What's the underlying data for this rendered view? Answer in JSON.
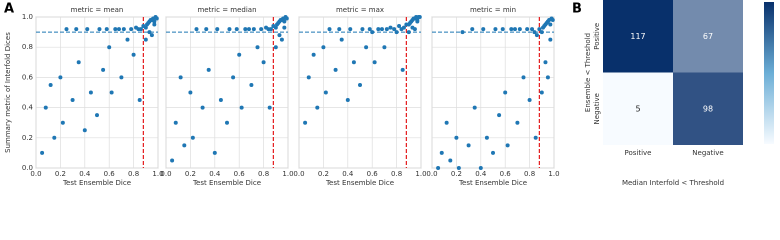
{
  "chart_data": [
    {
      "type": "scatter",
      "panel_label": "A",
      "title": "metric = mean",
      "xlabel": "Test Ensemble Dice",
      "ylabel": "Summary metric of Interfold Dices",
      "color": "#1f77b4",
      "x": [
        0.05,
        0.08,
        0.12,
        0.15,
        0.2,
        0.22,
        0.25,
        0.3,
        0.33,
        0.35,
        0.4,
        0.42,
        0.45,
        0.5,
        0.52,
        0.55,
        0.58,
        0.6,
        0.62,
        0.65,
        0.68,
        0.7,
        0.72,
        0.75,
        0.78,
        0.8,
        0.82,
        0.84,
        0.86,
        0.88,
        0.9,
        0.91,
        0.92,
        0.93,
        0.94,
        0.95,
        0.96,
        0.97,
        0.98,
        0.99,
        0.93,
        0.95,
        0.97,
        0.9,
        0.85
      ],
      "values": [
        0.1,
        0.4,
        0.55,
        0.2,
        0.6,
        0.3,
        0.92,
        0.45,
        0.92,
        0.7,
        0.25,
        0.92,
        0.5,
        0.35,
        0.92,
        0.65,
        0.92,
        0.8,
        0.5,
        0.92,
        0.92,
        0.6,
        0.92,
        0.85,
        0.92,
        0.75,
        0.93,
        0.92,
        0.92,
        0.94,
        0.93,
        0.95,
        0.96,
        0.97,
        0.98,
        0.98,
        0.99,
        0.97,
        1.0,
        0.99,
        0.9,
        0.88,
        0.95,
        0.85,
        0.45
      ],
      "hline": 0.9,
      "hline_color": "#1f77b4",
      "vline": 0.88,
      "vline_color": "#e41a1c",
      "grid": true,
      "xlim": [
        0,
        1
      ],
      "ylim": [
        0,
        1
      ],
      "xticks": [
        {
          "value": 0,
          "label": "0.0"
        },
        {
          "value": 0.2,
          "label": "0.2"
        },
        {
          "value": 0.4,
          "label": "0.4"
        },
        {
          "value": 0.6,
          "label": "0.6"
        },
        {
          "value": 0.8,
          "label": "0.8"
        },
        {
          "value": 1,
          "label": "1.0"
        }
      ],
      "yticks": [
        {
          "value": 0,
          "label": "0.0"
        },
        {
          "value": 0.2,
          "label": "0.2"
        },
        {
          "value": 0.4,
          "label": "0.4"
        },
        {
          "value": 0.6,
          "label": "0.6"
        },
        {
          "value": 0.8,
          "label": "0.8"
        },
        {
          "value": 1,
          "label": "1.0"
        }
      ]
    },
    {
      "type": "scatter",
      "title": "metric = median",
      "xlabel": "Test Ensemble Dice",
      "color": "#1f77b4",
      "x": [
        0.05,
        0.08,
        0.12,
        0.15,
        0.2,
        0.22,
        0.25,
        0.3,
        0.33,
        0.35,
        0.4,
        0.42,
        0.45,
        0.5,
        0.52,
        0.55,
        0.58,
        0.6,
        0.62,
        0.65,
        0.68,
        0.7,
        0.72,
        0.75,
        0.78,
        0.8,
        0.82,
        0.84,
        0.86,
        0.88,
        0.9,
        0.91,
        0.92,
        0.93,
        0.94,
        0.95,
        0.96,
        0.97,
        0.98,
        0.99,
        0.93,
        0.95,
        0.97,
        0.9,
        0.85
      ],
      "values": [
        0.05,
        0.3,
        0.6,
        0.15,
        0.5,
        0.2,
        0.92,
        0.4,
        0.92,
        0.65,
        0.1,
        0.92,
        0.45,
        0.3,
        0.92,
        0.6,
        0.92,
        0.75,
        0.4,
        0.92,
        0.92,
        0.55,
        0.92,
        0.8,
        0.92,
        0.7,
        0.93,
        0.92,
        0.92,
        0.94,
        0.93,
        0.95,
        0.96,
        0.97,
        0.98,
        0.98,
        0.99,
        0.97,
        1.0,
        0.99,
        0.88,
        0.85,
        0.93,
        0.8,
        0.4
      ],
      "hline": 0.9,
      "hline_color": "#1f77b4",
      "vline": 0.88,
      "vline_color": "#e41a1c",
      "grid": true,
      "xlim": [
        0,
        1
      ],
      "ylim": [
        0,
        1
      ],
      "xticks": [
        {
          "value": 0,
          "label": "0.0"
        },
        {
          "value": 0.2,
          "label": "0.2"
        },
        {
          "value": 0.4,
          "label": "0.4"
        },
        {
          "value": 0.6,
          "label": "0.6"
        },
        {
          "value": 0.8,
          "label": "0.8"
        },
        {
          "value": 1,
          "label": "1.0"
        }
      ],
      "yticks": [
        0,
        0.2,
        0.4,
        0.6,
        0.8,
        1
      ]
    },
    {
      "type": "scatter",
      "title": "metric = max",
      "xlabel": "Test Ensemble Dice",
      "color": "#1f77b4",
      "x": [
        0.05,
        0.08,
        0.12,
        0.15,
        0.2,
        0.22,
        0.25,
        0.3,
        0.33,
        0.35,
        0.4,
        0.42,
        0.45,
        0.5,
        0.52,
        0.55,
        0.58,
        0.6,
        0.62,
        0.65,
        0.68,
        0.7,
        0.72,
        0.75,
        0.78,
        0.8,
        0.82,
        0.84,
        0.86,
        0.88,
        0.9,
        0.91,
        0.92,
        0.93,
        0.94,
        0.95,
        0.96,
        0.97,
        0.98,
        0.99,
        0.93,
        0.95,
        0.97,
        0.9,
        0.85
      ],
      "values": [
        0.3,
        0.6,
        0.75,
        0.4,
        0.8,
        0.5,
        0.92,
        0.65,
        0.92,
        0.85,
        0.45,
        0.92,
        0.7,
        0.55,
        0.92,
        0.8,
        0.92,
        0.9,
        0.7,
        0.92,
        0.92,
        0.8,
        0.92,
        0.93,
        0.92,
        0.9,
        0.94,
        0.92,
        0.93,
        0.95,
        0.95,
        0.96,
        0.97,
        0.98,
        0.99,
        0.99,
        1.0,
        0.98,
        1.0,
        1.0,
        0.93,
        0.92,
        0.97,
        0.9,
        0.65
      ],
      "hline": 0.9,
      "hline_color": "#1f77b4",
      "vline": 0.88,
      "vline_color": "#e41a1c",
      "grid": true,
      "xlim": [
        0,
        1
      ],
      "ylim": [
        0,
        1
      ],
      "xticks": [
        {
          "value": 0,
          "label": "0.0"
        },
        {
          "value": 0.2,
          "label": "0.2"
        },
        {
          "value": 0.4,
          "label": "0.4"
        },
        {
          "value": 0.6,
          "label": "0.6"
        },
        {
          "value": 0.8,
          "label": "0.8"
        },
        {
          "value": 1,
          "label": "1.0"
        }
      ],
      "yticks": [
        0,
        0.2,
        0.4,
        0.6,
        0.8,
        1
      ]
    },
    {
      "type": "scatter",
      "title": "metric = min",
      "xlabel": "Test Ensemble Dice",
      "color": "#1f77b4",
      "x": [
        0.05,
        0.08,
        0.12,
        0.15,
        0.2,
        0.22,
        0.25,
        0.3,
        0.33,
        0.35,
        0.4,
        0.42,
        0.45,
        0.5,
        0.52,
        0.55,
        0.58,
        0.6,
        0.62,
        0.65,
        0.68,
        0.7,
        0.72,
        0.75,
        0.78,
        0.8,
        0.82,
        0.84,
        0.86,
        0.88,
        0.9,
        0.91,
        0.92,
        0.93,
        0.94,
        0.95,
        0.96,
        0.97,
        0.98,
        0.99,
        0.93,
        0.95,
        0.97,
        0.9,
        0.85
      ],
      "values": [
        0.0,
        0.1,
        0.3,
        0.05,
        0.2,
        0.0,
        0.9,
        0.15,
        0.92,
        0.4,
        0.0,
        0.92,
        0.2,
        0.1,
        0.92,
        0.35,
        0.92,
        0.5,
        0.15,
        0.92,
        0.92,
        0.3,
        0.92,
        0.6,
        0.92,
        0.45,
        0.92,
        0.9,
        0.88,
        0.92,
        0.9,
        0.93,
        0.94,
        0.95,
        0.96,
        0.97,
        0.98,
        0.95,
        0.99,
        0.98,
        0.7,
        0.6,
        0.85,
        0.5,
        0.2
      ],
      "hline": 0.9,
      "hline_color": "#1f77b4",
      "vline": 0.88,
      "vline_color": "#e41a1c",
      "grid": true,
      "xlim": [
        0,
        1
      ],
      "ylim": [
        0,
        1
      ],
      "xticks": [
        {
          "value": 0,
          "label": "0.0"
        },
        {
          "value": 0.2,
          "label": "0.2"
        },
        {
          "value": 0.4,
          "label": "0.4"
        },
        {
          "value": 0.6,
          "label": "0.6"
        },
        {
          "value": 0.8,
          "label": "0.8"
        },
        {
          "value": 1,
          "label": "1.0"
        }
      ],
      "yticks": [
        0,
        0.2,
        0.4,
        0.6,
        0.8,
        1
      ]
    },
    {
      "type": "heatmap",
      "panel_label": "B",
      "xlabel": "Median Interfold < Threshold",
      "ylabel": "Ensemble < Threshold",
      "xcategories": [
        "Positive",
        "Negative"
      ],
      "ycategories": [
        "Positive",
        "Negative"
      ],
      "values": [
        [
          117,
          67
        ],
        [
          5,
          98
        ]
      ]
    }
  ]
}
